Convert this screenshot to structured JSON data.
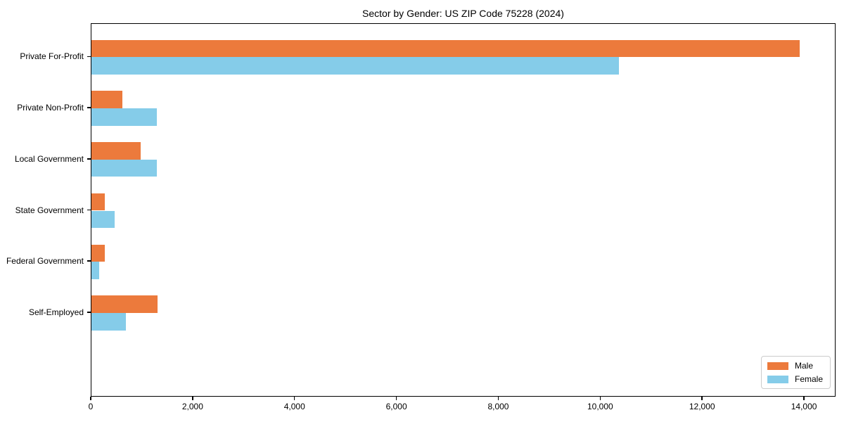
{
  "chart_data": {
    "type": "bar",
    "orientation": "horizontal",
    "title": "Sector by Gender: US ZIP Code 75228 (2024)",
    "xlabel": "",
    "ylabel": "",
    "categories": [
      "Private For-Profit",
      "Private Non-Profit",
      "Local Government",
      "State Government",
      "Federal Government",
      "Self-Employed"
    ],
    "series": [
      {
        "name": "Male",
        "color": "#ec7a3c",
        "values": [
          13900,
          610,
          965,
          260,
          260,
          1300
        ]
      },
      {
        "name": "Female",
        "color": "#85cce9",
        "values": [
          10350,
          1280,
          1280,
          455,
          150,
          680
        ]
      }
    ],
    "xlim": [
      0,
      14620
    ],
    "xticks": [
      {
        "value": 0,
        "label": "0"
      },
      {
        "value": 2000,
        "label": "2,000"
      },
      {
        "value": 4000,
        "label": "4,000"
      },
      {
        "value": 6000,
        "label": "6,000"
      },
      {
        "value": 8000,
        "label": "8,000"
      },
      {
        "value": 10000,
        "label": "10,000"
      },
      {
        "value": 12000,
        "label": "12,000"
      },
      {
        "value": 14000,
        "label": "14,000"
      }
    ],
    "legend_position": "lower right",
    "grid": false,
    "axis_color": "#000000"
  }
}
